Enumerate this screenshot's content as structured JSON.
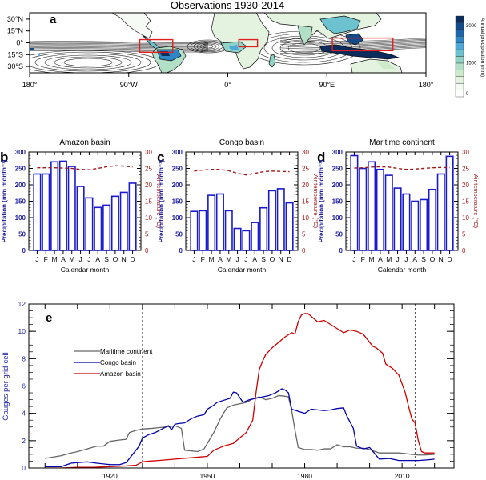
{
  "chart_data": [
    {
      "panel": "a",
      "type": "heatmap",
      "title": "Observations 1930-2014",
      "x_tick_labels": [
        "180°",
        "90°W",
        "0°",
        "90°E",
        "180°"
      ],
      "y_tick_labels": [
        "30°N",
        "15°N",
        "0°",
        "15°S",
        "30°S"
      ],
      "xlim": [
        -180,
        180
      ],
      "ylim": [
        -38,
        38
      ],
      "colorbar": {
        "label": "Annual precipitation (mm)",
        "tick_labels": [
          "3000",
          "1500",
          "0"
        ],
        "range": [
          0,
          3250
        ],
        "colors": [
          "#ffffff",
          "#f2faf2",
          "#e3f3e0",
          "#cdebcb",
          "#b1e0c6",
          "#8fd3c6",
          "#6cc3cf",
          "#4ea8d8",
          "#2f86c6",
          "#1b65ad",
          "#124a8a",
          "#0b2c5c"
        ]
      },
      "regions": [
        {
          "name": "Amazon basin",
          "lon": [
            -80,
            -50
          ],
          "lat": [
            -12,
            4
          ]
        },
        {
          "name": "Congo basin",
          "lon": [
            10,
            27
          ],
          "lat": [
            -5,
            4
          ]
        },
        {
          "name": "Maritime continent",
          "lon": [
            95,
            150
          ],
          "lat": [
            -10,
            6
          ]
        }
      ]
    },
    {
      "panel": "b",
      "type": "bar",
      "title": "Amazon basin",
      "categories": [
        "J",
        "F",
        "M",
        "A",
        "M",
        "J",
        "J",
        "A",
        "S",
        "O",
        "N",
        "D"
      ],
      "xlabel": "Calendar month",
      "ylabel": "Precipitation (mm month⁻¹)",
      "y2label": "Air temperature (°C)",
      "ylim": [
        0,
        300
      ],
      "y2lim": [
        0,
        30
      ],
      "yticks": [
        "0",
        "50",
        "100",
        "150",
        "200",
        "250",
        "300"
      ],
      "y2ticks": [
        "0",
        "5",
        "10",
        "15",
        "20",
        "25",
        "30"
      ],
      "series": [
        {
          "name": "Precipitation",
          "values": [
            233,
            233,
            270,
            272,
            256,
            195,
            160,
            131,
            138,
            165,
            177,
            205
          ]
        },
        {
          "name": "Air temperature",
          "values": [
            25.2,
            25.2,
            25.2,
            25.1,
            25.0,
            24.7,
            24.6,
            25.0,
            25.5,
            25.8,
            25.7,
            25.4
          ]
        }
      ]
    },
    {
      "panel": "c",
      "type": "bar",
      "title": "Congo basin",
      "categories": [
        "J",
        "F",
        "M",
        "A",
        "M",
        "J",
        "J",
        "A",
        "S",
        "O",
        "N",
        "D"
      ],
      "xlabel": "Calendar month",
      "ylabel": "Precipitation (mm month⁻¹)",
      "y2label": "Air temperature (°C)",
      "ylim": [
        0,
        300
      ],
      "y2lim": [
        0,
        30
      ],
      "yticks": [
        "0",
        "50",
        "100",
        "150",
        "200",
        "250",
        "300"
      ],
      "y2ticks": [
        "0",
        "5",
        "10",
        "15",
        "20",
        "25",
        "30"
      ],
      "series": [
        {
          "name": "Precipitation",
          "values": [
            119,
            121,
            168,
            172,
            121,
            67,
            60,
            85,
            130,
            182,
            188,
            145
          ]
        },
        {
          "name": "Air temperature",
          "values": [
            24.2,
            24.5,
            24.7,
            24.7,
            24.3,
            23.5,
            23.0,
            23.5,
            24.0,
            24.2,
            24.1,
            24.0
          ]
        }
      ]
    },
    {
      "panel": "d",
      "type": "bar",
      "title": "Maritime continent",
      "categories": [
        "J",
        "F",
        "M",
        "A",
        "M",
        "J",
        "J",
        "A",
        "S",
        "O",
        "N",
        "D"
      ],
      "xlabel": "Calendar month",
      "ylabel": "Precipitation (mm month⁻¹)",
      "y2label": "Air temperature (°C)",
      "ylim": [
        0,
        300
      ],
      "y2lim": [
        0,
        30
      ],
      "yticks": [
        "0",
        "50",
        "100",
        "150",
        "200",
        "250",
        "300"
      ],
      "y2ticks": [
        "0",
        "5",
        "10",
        "15",
        "20",
        "25",
        "30"
      ],
      "series": [
        {
          "name": "Precipitation",
          "values": [
            289,
            250,
            270,
            247,
            229,
            190,
            172,
            150,
            155,
            186,
            233,
            287
          ]
        },
        {
          "name": "Air temperature",
          "values": [
            25.1,
            25.2,
            25.4,
            25.5,
            25.4,
            25.0,
            24.7,
            24.8,
            25.0,
            25.2,
            25.3,
            25.2
          ]
        }
      ]
    },
    {
      "panel": "e",
      "type": "line",
      "xlabel": "",
      "ylabel": "Gauges per grid-cell",
      "xlim": [
        1895,
        2026
      ],
      "ylim": [
        0,
        12
      ],
      "xticks": [
        "1920",
        "1950",
        "1980",
        "2010"
      ],
      "xtick_values": [
        1920,
        1950,
        1980,
        2010
      ],
      "yticks": [
        "0",
        "2",
        "4",
        "6",
        "8",
        "10",
        "12"
      ],
      "reference_lines": [
        1930,
        2014
      ],
      "legend": "upper-left",
      "series": [
        {
          "name": "Maritime continent",
          "color": "#666666",
          "x": [
            1900,
            1905,
            1908,
            1910,
            1913,
            1916,
            1918,
            1920,
            1923,
            1925,
            1926,
            1928,
            1930,
            1933,
            1935,
            1937,
            1939,
            1940,
            1942,
            1943,
            1945,
            1947,
            1949,
            1950,
            1952,
            1954,
            1956,
            1958,
            1960,
            1962,
            1964,
            1966,
            1968,
            1970,
            1972,
            1974,
            1975,
            1976,
            1977,
            1978,
            1980,
            1982,
            1984,
            1986,
            1988,
            1990,
            1992,
            1994,
            1996,
            1998,
            2000,
            2003,
            2006,
            2009,
            2011,
            2013,
            2015,
            2017,
            2020
          ],
          "y": [
            0.7,
            0.9,
            1.1,
            1.2,
            1.4,
            1.6,
            1.6,
            1.95,
            2.05,
            2.1,
            2.6,
            2.75,
            2.85,
            2.9,
            2.95,
            3.0,
            3.05,
            3.1,
            2.9,
            1.3,
            1.25,
            1.2,
            1.4,
            1.8,
            2.6,
            3.6,
            4.4,
            4.6,
            4.7,
            4.8,
            5.05,
            5.2,
            5.0,
            5.1,
            5.3,
            5.25,
            5.2,
            4.2,
            2.8,
            1.5,
            1.35,
            1.35,
            1.3,
            1.4,
            1.4,
            1.7,
            1.55,
            1.55,
            1.45,
            1.45,
            1.35,
            1.1,
            1.1,
            1.1,
            1.05,
            1.0,
            0.95,
            0.95,
            1.0
          ]
        },
        {
          "name": "Congo basin",
          "color": "#0000aa",
          "x": [
            1900,
            1905,
            1908,
            1910,
            1913,
            1916,
            1918,
            1920,
            1923,
            1925,
            1927,
            1929,
            1930,
            1932,
            1934,
            1936,
            1938,
            1939,
            1940,
            1941,
            1943,
            1945,
            1947,
            1949,
            1950,
            1952,
            1953,
            1955,
            1957,
            1958,
            1959,
            1961,
            1963,
            1965,
            1967,
            1969,
            1971,
            1973,
            1974,
            1975,
            1976,
            1978,
            1980,
            1982,
            1984,
            1986,
            1988,
            1990,
            1992,
            1993,
            1995,
            1996,
            1998,
            2000,
            2003,
            2006,
            2009,
            2012,
            2015,
            2018,
            2020
          ],
          "y": [
            0.1,
            0.1,
            0.35,
            0.4,
            0.45,
            0.35,
            0.3,
            0.25,
            0.25,
            0.4,
            1.0,
            1.6,
            2.2,
            2.45,
            2.6,
            2.85,
            3.1,
            2.8,
            3.2,
            3.25,
            3.3,
            3.6,
            3.8,
            3.9,
            4.3,
            4.6,
            4.8,
            4.95,
            5.1,
            5.55,
            5.5,
            4.8,
            5.0,
            5.1,
            5.2,
            5.3,
            5.5,
            5.8,
            5.7,
            5.5,
            4.3,
            4.15,
            4.0,
            4.3,
            4.25,
            4.2,
            4.25,
            4.35,
            4.4,
            3.8,
            2.9,
            1.6,
            1.4,
            1.5,
            0.65,
            0.7,
            0.55,
            0.55,
            0.55,
            0.6,
            0.65
          ]
        },
        {
          "name": "Amazon basin",
          "color": "#cc0000",
          "x": [
            1900,
            1905,
            1910,
            1915,
            1920,
            1925,
            1928,
            1930,
            1932,
            1935,
            1940,
            1945,
            1950,
            1952,
            1955,
            1958,
            1960,
            1962,
            1964,
            1965,
            1966,
            1967,
            1968,
            1970,
            1972,
            1974,
            1976,
            1977,
            1978,
            1979,
            1980,
            1981,
            1982,
            1984,
            1986,
            1988,
            1990,
            1992,
            1994,
            1996,
            1998,
            2000,
            2001,
            2002,
            2003,
            2004,
            2005,
            2007,
            2009,
            2011,
            2012,
            2013,
            2014,
            2015,
            2016,
            2017,
            2020
          ],
          "y": [
            0.0,
            0.0,
            0.05,
            0.05,
            0.1,
            0.15,
            0.2,
            0.45,
            0.5,
            0.55,
            0.65,
            0.75,
            0.85,
            1.3,
            1.6,
            1.8,
            2.2,
            2.6,
            3.5,
            5.5,
            7.2,
            7.8,
            8.3,
            8.8,
            9.2,
            9.6,
            9.9,
            9.8,
            10.7,
            11.2,
            11.3,
            11.3,
            11.1,
            10.7,
            10.8,
            10.5,
            10.2,
            9.9,
            10.1,
            10.0,
            9.8,
            9.2,
            8.9,
            8.8,
            8.6,
            8.4,
            7.6,
            7.3,
            6.8,
            5.5,
            4.5,
            3.6,
            3.3,
            2.0,
            1.2,
            1.1,
            1.1
          ]
        }
      ]
    }
  ],
  "panel_labels": {
    "a": "a",
    "b": "b",
    "c": "c",
    "d": "d",
    "e": "e"
  }
}
